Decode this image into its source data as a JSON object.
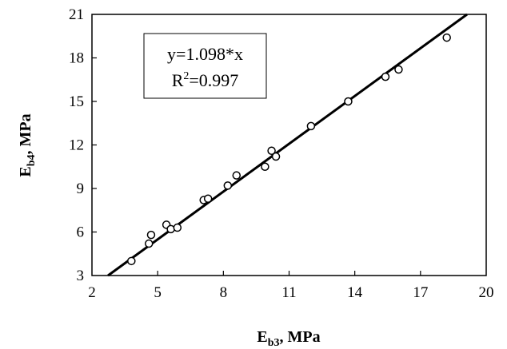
{
  "chart_data": {
    "type": "scatter",
    "title": "",
    "xlabel": {
      "base": "E",
      "sub": "b3",
      "suffix": ", MPa"
    },
    "ylabel": {
      "base": "E",
      "sub": "b4",
      "suffix": ", MPa"
    },
    "xlim": [
      2,
      20
    ],
    "ylim": [
      3,
      21
    ],
    "x_ticks": [
      "2",
      "5",
      "8",
      "11",
      "14",
      "17",
      "20"
    ],
    "y_ticks": [
      "3",
      "6",
      "9",
      "12",
      "15",
      "18",
      "21"
    ],
    "grid": false,
    "legend": "none",
    "annotation": {
      "equation": "y=1.098*x",
      "r2_prefix": "R",
      "r2_sup": "2",
      "r2_value": "=0.997"
    },
    "fit_line": {
      "slope": 1.098,
      "intercept": 0
    },
    "points": [
      {
        "x": 3.8,
        "y": 4.0
      },
      {
        "x": 4.6,
        "y": 5.2
      },
      {
        "x": 4.7,
        "y": 5.8
      },
      {
        "x": 5.4,
        "y": 6.5
      },
      {
        "x": 5.6,
        "y": 6.2
      },
      {
        "x": 5.9,
        "y": 6.3
      },
      {
        "x": 7.1,
        "y": 8.2
      },
      {
        "x": 7.3,
        "y": 8.3
      },
      {
        "x": 8.2,
        "y": 9.2
      },
      {
        "x": 8.6,
        "y": 9.9
      },
      {
        "x": 9.9,
        "y": 10.5
      },
      {
        "x": 10.2,
        "y": 11.6
      },
      {
        "x": 10.4,
        "y": 11.2
      },
      {
        "x": 12.0,
        "y": 13.3
      },
      {
        "x": 13.7,
        "y": 15.0
      },
      {
        "x": 15.4,
        "y": 16.7
      },
      {
        "x": 16.0,
        "y": 17.2
      },
      {
        "x": 18.2,
        "y": 19.4
      }
    ]
  }
}
